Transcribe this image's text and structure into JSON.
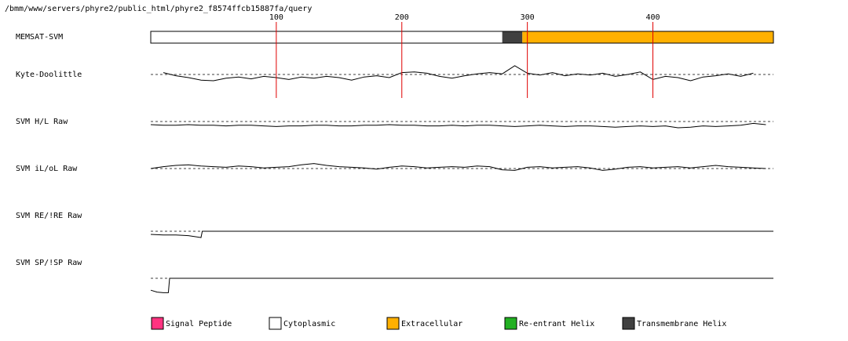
{
  "path": "/bmm/www/servers/phyre2/public_html/phyre2_f8574ffcb15887fa/query",
  "chart_data": {
    "type": "memsat",
    "xlim": [
      0,
      496
    ],
    "xticks": [
      100,
      200,
      300,
      400
    ],
    "tick_color": "#e00000",
    "topology": {
      "name": "MEMSAT-SVM",
      "segments": [
        {
          "start": 0,
          "end": 280,
          "color": "#ffffff"
        },
        {
          "start": 280,
          "end": 296,
          "color": "#404040"
        },
        {
          "start": 296,
          "end": 496,
          "color": "#ffb000"
        }
      ]
    },
    "tracks": [
      {
        "name": "Kyte-Doolittle",
        "ylim": [
          -3,
          3
        ],
        "x": [
          10,
          20,
          30,
          40,
          50,
          60,
          70,
          80,
          90,
          100,
          110,
          120,
          130,
          140,
          150,
          160,
          170,
          180,
          190,
          200,
          210,
          220,
          230,
          240,
          250,
          260,
          270,
          280,
          290,
          300,
          310,
          320,
          330,
          340,
          350,
          360,
          370,
          380,
          390,
          400,
          410,
          420,
          430,
          440,
          450,
          460,
          470,
          480
        ],
        "values": [
          0.3,
          -0.2,
          -0.5,
          -0.9,
          -1.0,
          -0.6,
          -0.4,
          -0.7,
          -0.3,
          -0.5,
          -0.8,
          -0.4,
          -0.6,
          -0.3,
          -0.5,
          -0.9,
          -0.4,
          -0.2,
          -0.5,
          0.3,
          0.4,
          0.2,
          -0.3,
          -0.6,
          -0.2,
          0.1,
          0.3,
          0.1,
          1.4,
          0.2,
          -0.1,
          0.3,
          -0.2,
          0.1,
          -0.1,
          0.2,
          -0.3,
          0.0,
          0.4,
          -0.8,
          -0.3,
          -0.5,
          -1.0,
          -0.4,
          -0.2,
          0.1,
          -0.3,
          0.2
        ]
      },
      {
        "name": "SVM H/L Raw",
        "ylim": [
          -3,
          3
        ],
        "x": [
          0,
          10,
          20,
          30,
          40,
          50,
          60,
          70,
          80,
          90,
          100,
          110,
          120,
          130,
          140,
          150,
          160,
          170,
          180,
          190,
          200,
          210,
          220,
          230,
          240,
          250,
          260,
          270,
          280,
          290,
          300,
          310,
          320,
          330,
          340,
          350,
          360,
          370,
          380,
          390,
          400,
          410,
          420,
          430,
          440,
          450,
          460,
          470,
          480,
          490
        ],
        "values": [
          -0.5,
          -0.6,
          -0.6,
          -0.5,
          -0.6,
          -0.6,
          -0.7,
          -0.6,
          -0.6,
          -0.7,
          -0.8,
          -0.7,
          -0.7,
          -0.6,
          -0.6,
          -0.7,
          -0.7,
          -0.6,
          -0.6,
          -0.5,
          -0.6,
          -0.6,
          -0.7,
          -0.7,
          -0.6,
          -0.7,
          -0.6,
          -0.6,
          -0.7,
          -0.8,
          -0.7,
          -0.6,
          -0.7,
          -0.8,
          -0.7,
          -0.7,
          -0.8,
          -0.9,
          -0.8,
          -0.7,
          -0.8,
          -0.7,
          -1.0,
          -0.9,
          -0.7,
          -0.8,
          -0.7,
          -0.6,
          -0.3,
          -0.5
        ]
      },
      {
        "name": "SVM iL/oL Raw",
        "ylim": [
          -3,
          3
        ],
        "x": [
          0,
          10,
          20,
          30,
          40,
          50,
          60,
          70,
          80,
          90,
          100,
          110,
          120,
          130,
          140,
          150,
          160,
          170,
          180,
          190,
          200,
          210,
          220,
          230,
          240,
          250,
          260,
          270,
          280,
          290,
          300,
          310,
          320,
          330,
          340,
          350,
          360,
          370,
          380,
          390,
          400,
          410,
          420,
          430,
          440,
          450,
          460,
          470,
          480,
          490
        ],
        "values": [
          0,
          0.3,
          0.5,
          0.6,
          0.4,
          0.3,
          0.2,
          0.4,
          0.3,
          0.1,
          0.2,
          0.3,
          0.6,
          0.8,
          0.5,
          0.3,
          0.2,
          0.1,
          -0.1,
          0.2,
          0.4,
          0.3,
          0.1,
          0.2,
          0.3,
          0.2,
          0.4,
          0.3,
          -0.2,
          -0.3,
          0.2,
          0.3,
          0.1,
          0.2,
          0.3,
          0.1,
          -0.3,
          -0.1,
          0.2,
          0.3,
          0.1,
          0.2,
          0.3,
          0.1,
          0.3,
          0.5,
          0.3,
          0.2,
          0.1,
          0
        ]
      },
      {
        "name": "SVM RE/!RE Raw",
        "ylim": [
          -3,
          3
        ],
        "x": [
          0,
          10,
          20,
          30,
          40,
          41,
          496
        ],
        "values": [
          -0.5,
          -0.6,
          -0.6,
          -0.7,
          -1.0,
          0,
          0
        ]
      },
      {
        "name": "SVM SP/!SP Raw",
        "ylim": [
          -3,
          3
        ],
        "x": [
          0,
          5,
          10,
          14,
          15,
          496
        ],
        "values": [
          -1.9,
          -2.2,
          -2.3,
          -2.3,
          0,
          0
        ]
      }
    ],
    "legend": [
      {
        "name": "Signal Peptide",
        "color": "#ff3380"
      },
      {
        "name": "Cytoplasmic",
        "color": "#ffffff"
      },
      {
        "name": "Extracellular",
        "color": "#ffb000"
      },
      {
        "name": "Re-entrant Helix",
        "color": "#22b022"
      },
      {
        "name": "Transmembrane Helix",
        "color": "#404040"
      }
    ]
  }
}
